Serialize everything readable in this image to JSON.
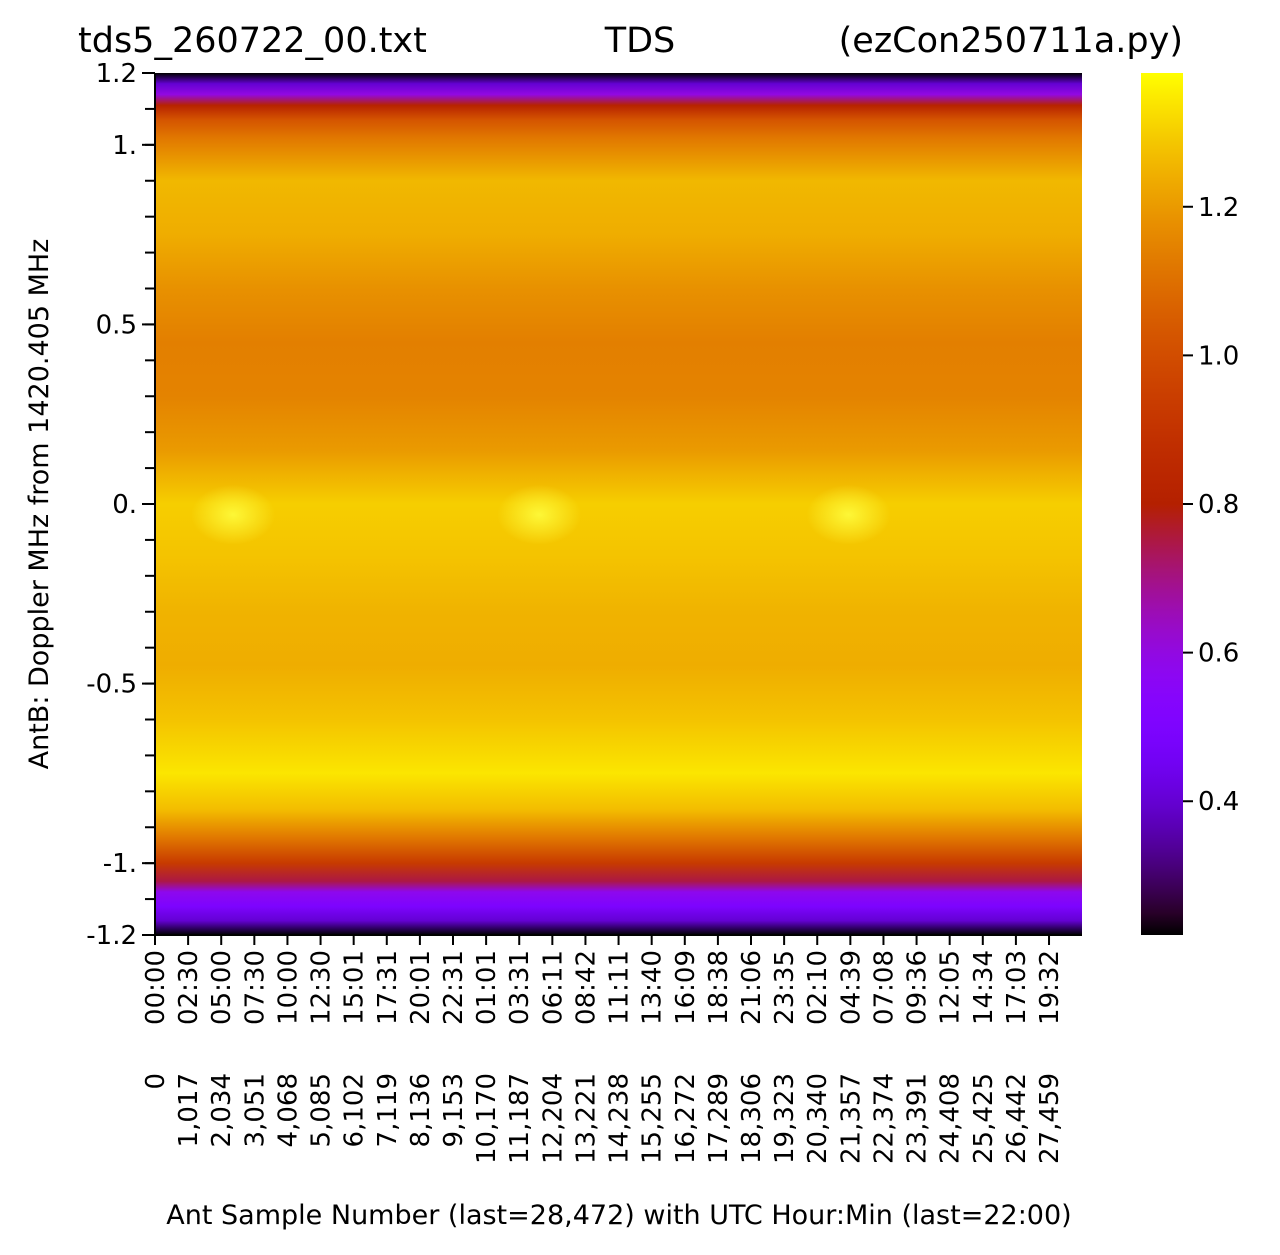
{
  "chart_data": {
    "type": "heatmap",
    "title_left": "tds5_260722_00.txt",
    "title_center": "TDS",
    "title_right": "(ezCon250711a.py)",
    "xlabel": "Ant Sample Number (last=28,472) with UTC Hour:Min (last=22:00)",
    "ylabel": "AntB:  Doppler MHz from 1420.405 MHz",
    "x_range": [
      0,
      28472
    ],
    "y_range": [
      -1.2,
      1.2
    ],
    "y_ticks": [
      {
        "value": 1.2,
        "label": "1.2"
      },
      {
        "value": 1.0,
        "label": "1."
      },
      {
        "value": 0.5,
        "label": "0.5"
      },
      {
        "value": 0.0,
        "label": "0."
      },
      {
        "value": -0.5,
        "label": "-0.5"
      },
      {
        "value": -1.0,
        "label": "-1."
      },
      {
        "value": -1.2,
        "label": "-1.2"
      }
    ],
    "y_minor_step": 0.1,
    "x_ticks": [
      {
        "sample": 0,
        "sample_label": "0",
        "time_label": "00:00"
      },
      {
        "sample": 1017,
        "sample_label": "1,017",
        "time_label": "02:30"
      },
      {
        "sample": 2034,
        "sample_label": "2,034",
        "time_label": "05:00"
      },
      {
        "sample": 3051,
        "sample_label": "3,051",
        "time_label": "07:30"
      },
      {
        "sample": 4068,
        "sample_label": "4,068",
        "time_label": "10:00"
      },
      {
        "sample": 5085,
        "sample_label": "5,085",
        "time_label": "12:30"
      },
      {
        "sample": 6102,
        "sample_label": "6,102",
        "time_label": "15:01"
      },
      {
        "sample": 7119,
        "sample_label": "7,119",
        "time_label": "17:31"
      },
      {
        "sample": 8136,
        "sample_label": "8,136",
        "time_label": "20:01"
      },
      {
        "sample": 9153,
        "sample_label": "9,153",
        "time_label": "22:31"
      },
      {
        "sample": 10170,
        "sample_label": "10,170",
        "time_label": "01:01"
      },
      {
        "sample": 11187,
        "sample_label": "11,187",
        "time_label": "03:31"
      },
      {
        "sample": 12204,
        "sample_label": "12,204",
        "time_label": "06:11"
      },
      {
        "sample": 13221,
        "sample_label": "13,221",
        "time_label": "08:42"
      },
      {
        "sample": 14238,
        "sample_label": "14,238",
        "time_label": "11:11"
      },
      {
        "sample": 15255,
        "sample_label": "15,255",
        "time_label": "13:40"
      },
      {
        "sample": 16272,
        "sample_label": "16,272",
        "time_label": "16:09"
      },
      {
        "sample": 17289,
        "sample_label": "17,289",
        "time_label": "18:38"
      },
      {
        "sample": 18306,
        "sample_label": "18,306",
        "time_label": "21:06"
      },
      {
        "sample": 19323,
        "sample_label": "19,323",
        "time_label": "23:35"
      },
      {
        "sample": 20340,
        "sample_label": "20,340",
        "time_label": "02:10"
      },
      {
        "sample": 21357,
        "sample_label": "21,357",
        "time_label": "04:39"
      },
      {
        "sample": 22374,
        "sample_label": "22,374",
        "time_label": "07:08"
      },
      {
        "sample": 23391,
        "sample_label": "23,391",
        "time_label": "09:36"
      },
      {
        "sample": 24408,
        "sample_label": "24,408",
        "time_label": "12:05"
      },
      {
        "sample": 25425,
        "sample_label": "25,425",
        "time_label": "14:34"
      },
      {
        "sample": 26442,
        "sample_label": "26,442",
        "time_label": "17:03"
      },
      {
        "sample": 27459,
        "sample_label": "27,459",
        "time_label": "19:32"
      }
    ],
    "colormap": "gnuplot",
    "color_range": [
      0.22,
      1.38
    ],
    "colorbar_ticks": [
      {
        "value": 1.2,
        "label": "1.2"
      },
      {
        "value": 1.0,
        "label": "1.0"
      },
      {
        "value": 0.8,
        "label": "0.8"
      },
      {
        "value": 0.6,
        "label": "0.6"
      },
      {
        "value": 0.4,
        "label": "0.4"
      }
    ],
    "frequency_profile": [
      {
        "y": 1.2,
        "value": 0.22
      },
      {
        "y": 1.17,
        "value": 0.4
      },
      {
        "y": 1.14,
        "value": 0.6
      },
      {
        "y": 1.11,
        "value": 0.82
      },
      {
        "y": 1.07,
        "value": 1.02
      },
      {
        "y": 1.02,
        "value": 1.12
      },
      {
        "y": 0.9,
        "value": 1.26
      },
      {
        "y": 0.75,
        "value": 1.24
      },
      {
        "y": 0.6,
        "value": 1.18
      },
      {
        "y": 0.45,
        "value": 1.14
      },
      {
        "y": 0.3,
        "value": 1.15
      },
      {
        "y": 0.15,
        "value": 1.2
      },
      {
        "y": 0.0,
        "value": 1.3
      },
      {
        "y": -0.15,
        "value": 1.28
      },
      {
        "y": -0.3,
        "value": 1.25
      },
      {
        "y": -0.45,
        "value": 1.24
      },
      {
        "y": -0.6,
        "value": 1.28
      },
      {
        "y": -0.75,
        "value": 1.34
      },
      {
        "y": -0.85,
        "value": 1.27
      },
      {
        "y": -0.93,
        "value": 1.12
      },
      {
        "y": -1.0,
        "value": 0.93
      },
      {
        "y": -1.05,
        "value": 0.75
      },
      {
        "y": -1.08,
        "value": 0.58
      },
      {
        "y": -1.12,
        "value": 0.5
      },
      {
        "y": -1.16,
        "value": 0.4
      },
      {
        "y": -1.2,
        "value": 0.22
      }
    ],
    "bright_spots": [
      {
        "sample": 2400,
        "y": -0.03,
        "value": 1.35
      },
      {
        "sample": 11800,
        "y": -0.03,
        "value": 1.36
      },
      {
        "sample": 21300,
        "y": -0.03,
        "value": 1.35
      }
    ]
  }
}
